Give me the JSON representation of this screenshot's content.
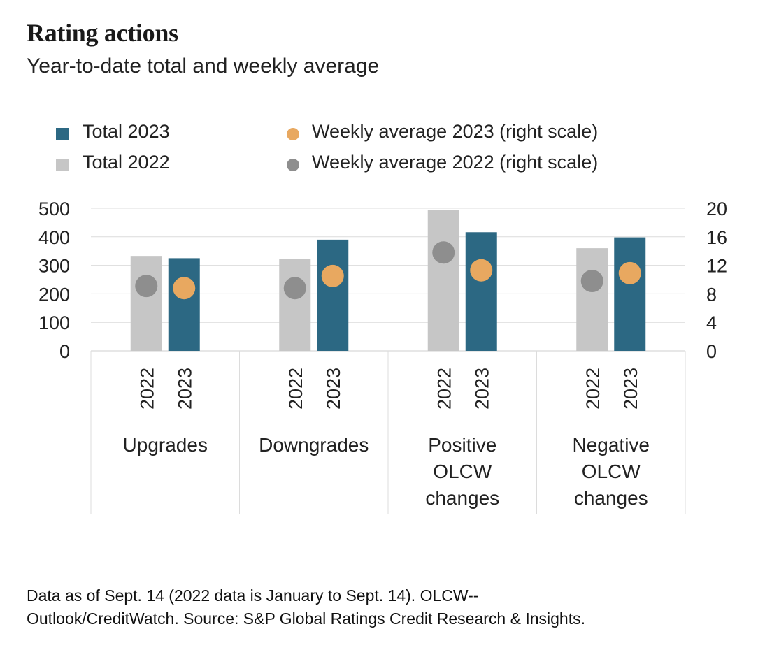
{
  "title": "Rating actions",
  "subtitle": "Year-to-date total and weekly average",
  "legend": [
    {
      "label": "Total 2023",
      "color": "#2c6883",
      "shape": "square"
    },
    {
      "label": "Total 2022",
      "color": "#c6c6c6",
      "shape": "square"
    },
    {
      "label": "Weekly average 2023 (right scale)",
      "color": "#e8a860",
      "shape": "circle"
    },
    {
      "label": "Weekly average 2022 (right scale)",
      "color": "#8e8e8e",
      "shape": "circle"
    }
  ],
  "footnote_line1": "Data as of Sept. 14 (2022 data is January to Sept. 14). OLCW--",
  "footnote_line2": "Outlook/CreditWatch. Source: S&P Global Ratings Credit Research & Insights.",
  "chart_data": {
    "type": "bar",
    "categories": [
      {
        "lines": [
          "Upgrades"
        ]
      },
      {
        "lines": [
          "Downgrades"
        ]
      },
      {
        "lines": [
          "Positive",
          "OLCW",
          "changes"
        ]
      },
      {
        "lines": [
          "Negative",
          "OLCW",
          "changes"
        ]
      }
    ],
    "sub_labels": [
      "2022",
      "2023"
    ],
    "series": [
      {
        "name": "Total 2022",
        "axis": "left",
        "color": "#c6c6c6",
        "values": [
          333,
          323,
          495,
          360
        ]
      },
      {
        "name": "Total 2023",
        "axis": "left",
        "color": "#2c6883",
        "values": [
          325,
          390,
          416,
          398
        ]
      },
      {
        "name": "Weekly average 2022 (right scale)",
        "axis": "right",
        "color": "#8e8e8e",
        "values": [
          9.1,
          8.8,
          13.8,
          9.8
        ]
      },
      {
        "name": "Weekly average 2023 (right scale)",
        "axis": "right",
        "color": "#e8a860",
        "values": [
          8.8,
          10.5,
          11.3,
          10.9
        ]
      }
    ],
    "y_left": {
      "min": 0,
      "max": 500,
      "ticks": [
        "0",
        "100",
        "200",
        "300",
        "400",
        "500"
      ]
    },
    "y_right": {
      "min": 0,
      "max": 20,
      "ticks": [
        "0",
        "4",
        "8",
        "12",
        "16",
        "20"
      ]
    },
    "grid": true,
    "legend_position": "top"
  }
}
